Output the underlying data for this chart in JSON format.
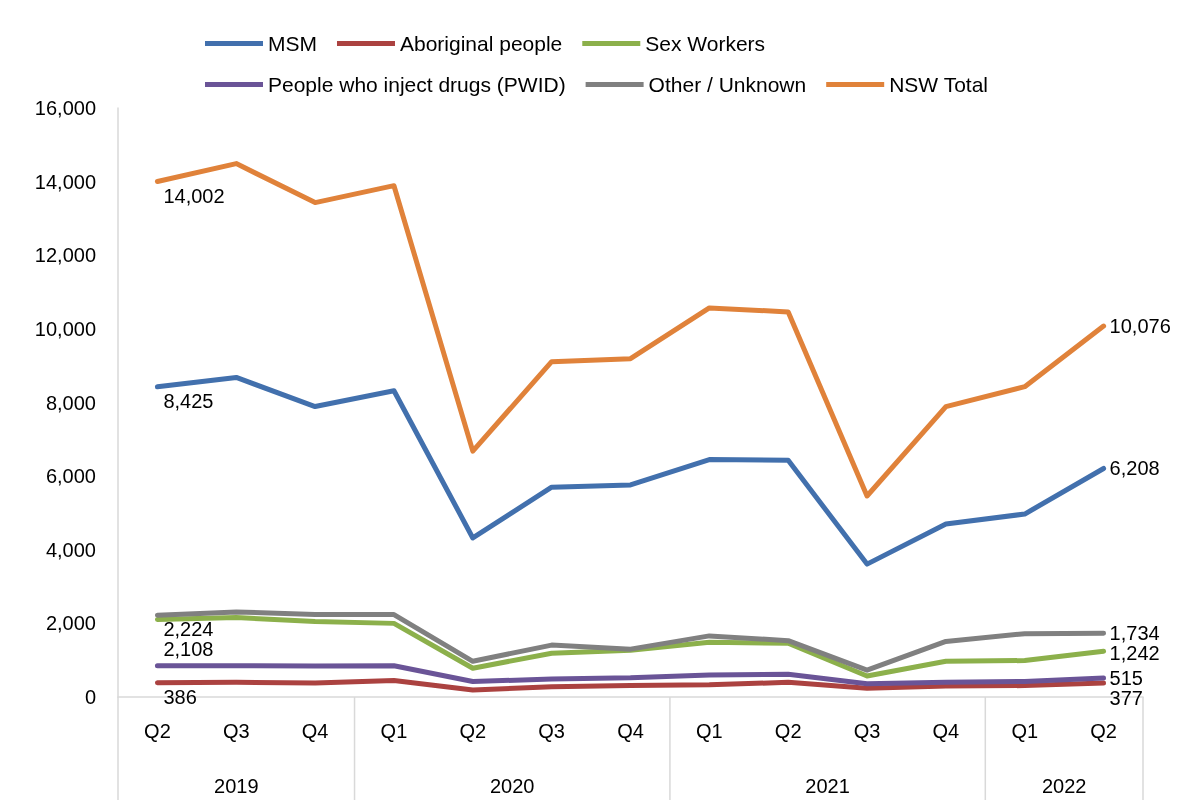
{
  "chart_data": {
    "type": "line",
    "categories": [
      "Q2",
      "Q3",
      "Q4",
      "Q1",
      "Q2",
      "Q3",
      "Q4",
      "Q1",
      "Q2",
      "Q3",
      "Q4",
      "Q1",
      "Q2"
    ],
    "series": [
      {
        "name": "MSM",
        "color": "#4270ad",
        "values": [
          8425,
          8680,
          7890,
          8320,
          4320,
          5700,
          5760,
          6450,
          6430,
          3610,
          4700,
          4970,
          6208
        ],
        "value_labels": [
          "8,425",
          null,
          null,
          null,
          null,
          null,
          null,
          null,
          null,
          null,
          null,
          null,
          "6,208"
        ]
      },
      {
        "name": "Aboriginal people",
        "color": "#ab4240",
        "values": [
          386,
          400,
          380,
          450,
          190,
          280,
          310,
          330,
          400,
          240,
          300,
          310,
          377
        ],
        "value_labels": [
          "386",
          null,
          null,
          null,
          null,
          null,
          null,
          null,
          null,
          null,
          null,
          null,
          "377"
        ]
      },
      {
        "name": "Sex Workers",
        "color": "#8cb04b",
        "values": [
          2108,
          2160,
          2050,
          2000,
          780,
          1190,
          1270,
          1490,
          1460,
          570,
          970,
          990,
          1242
        ],
        "value_labels": [
          "2,108",
          null,
          null,
          null,
          null,
          null,
          null,
          null,
          null,
          null,
          null,
          null,
          "1,242"
        ]
      },
      {
        "name": "People who inject drugs (PWID)",
        "color": "#6a5497",
        "values": [
          850,
          850,
          840,
          850,
          420,
          490,
          520,
          600,
          620,
          360,
          400,
          420,
          515
        ],
        "value_labels": [
          null,
          null,
          null,
          null,
          null,
          null,
          null,
          null,
          null,
          null,
          null,
          null,
          "515"
        ]
      },
      {
        "name": "Other / Unknown",
        "color": "#808080",
        "values": [
          2224,
          2310,
          2240,
          2240,
          970,
          1410,
          1300,
          1660,
          1530,
          730,
          1510,
          1720,
          1734
        ],
        "value_labels": [
          "2,224",
          null,
          null,
          null,
          null,
          null,
          null,
          null,
          null,
          null,
          null,
          null,
          "1,734"
        ]
      },
      {
        "name": "NSW Total",
        "color": "#e0823a",
        "values": [
          14002,
          14490,
          13430,
          13890,
          6680,
          9110,
          9190,
          10570,
          10460,
          5460,
          7890,
          8430,
          10076
        ],
        "value_labels": [
          "14,002",
          null,
          null,
          null,
          null,
          null,
          null,
          null,
          null,
          null,
          null,
          null,
          "10,076"
        ]
      }
    ],
    "annotations": [
      "2019",
      "2020",
      "2021",
      "2022"
    ],
    "ylim": [
      0,
      16000
    ],
    "yticks": [
      0,
      {
        "value": 2000,
        "label": "2,000"
      },
      {
        "value": 4000,
        "label": "4,000"
      },
      {
        "value": 6000,
        "label": "6,000"
      },
      {
        "value": 8000,
        "label": "8,000"
      },
      {
        "value": 10000,
        "label": "10,000"
      },
      {
        "value": 12000,
        "label": "12,000"
      },
      {
        "value": 14000,
        "label": "14,000"
      },
      {
        "value": 16000,
        "label": "16,000"
      }
    ],
    "grid": false,
    "legend": "top",
    "marker": "none",
    "line_style": "solid"
  }
}
